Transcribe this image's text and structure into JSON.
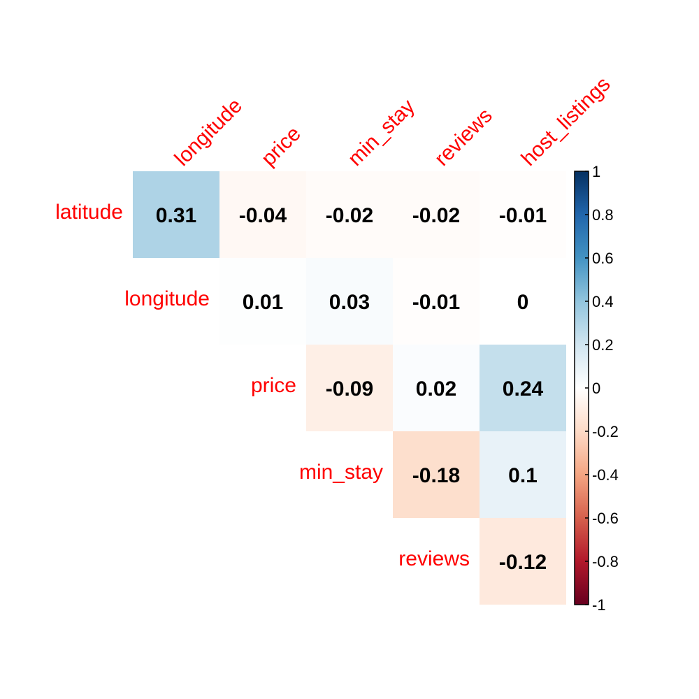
{
  "chart_data": {
    "type": "heatmap",
    "title": "",
    "variant": "upper-triangle correlation matrix",
    "rows": [
      "latitude",
      "longitude",
      "price",
      "min_stay",
      "reviews"
    ],
    "columns": [
      "longitude",
      "price",
      "min_stay",
      "reviews",
      "host_listings"
    ],
    "cells": [
      {
        "row": "latitude",
        "column": "longitude",
        "value": 0.31,
        "label": "0.31"
      },
      {
        "row": "latitude",
        "column": "price",
        "value": -0.04,
        "label": "-0.04"
      },
      {
        "row": "latitude",
        "column": "min_stay",
        "value": -0.02,
        "label": "-0.02"
      },
      {
        "row": "latitude",
        "column": "reviews",
        "value": -0.02,
        "label": "-0.02"
      },
      {
        "row": "latitude",
        "column": "host_listings",
        "value": -0.01,
        "label": "-0.01"
      },
      {
        "row": "longitude",
        "column": "price",
        "value": 0.01,
        "label": "0.01"
      },
      {
        "row": "longitude",
        "column": "min_stay",
        "value": 0.03,
        "label": "0.03"
      },
      {
        "row": "longitude",
        "column": "reviews",
        "value": -0.01,
        "label": "-0.01"
      },
      {
        "row": "longitude",
        "column": "host_listings",
        "value": 0,
        "label": "0"
      },
      {
        "row": "price",
        "column": "min_stay",
        "value": -0.09,
        "label": "-0.09"
      },
      {
        "row": "price",
        "column": "reviews",
        "value": 0.02,
        "label": "0.02"
      },
      {
        "row": "price",
        "column": "host_listings",
        "value": 0.24,
        "label": "0.24"
      },
      {
        "row": "min_stay",
        "column": "reviews",
        "value": -0.18,
        "label": "-0.18"
      },
      {
        "row": "min_stay",
        "column": "host_listings",
        "value": 0.1,
        "label": "0.1"
      },
      {
        "row": "reviews",
        "column": "host_listings",
        "value": -0.12,
        "label": "-0.12"
      }
    ],
    "colorbar": {
      "range": [
        -1,
        1
      ],
      "ticks": [
        1,
        0.8,
        0.6,
        0.4,
        0.2,
        0,
        -0.2,
        -0.4,
        -0.6,
        -0.8,
        -1
      ],
      "tick_labels": [
        "1",
        "0.8",
        "0.6",
        "0.4",
        "0.2",
        "0",
        "-0.2",
        "-0.4",
        "-0.6",
        "-0.8",
        "-1"
      ],
      "placement": "right"
    },
    "palette": [
      "#67001F",
      "#B2182B",
      "#D6604D",
      "#F4A582",
      "#FDDBC7",
      "#FFFFFF",
      "#D1E5F0",
      "#92C5DE",
      "#4393C3",
      "#2166AC",
      "#053061"
    ],
    "label_color": "#FF0000"
  }
}
